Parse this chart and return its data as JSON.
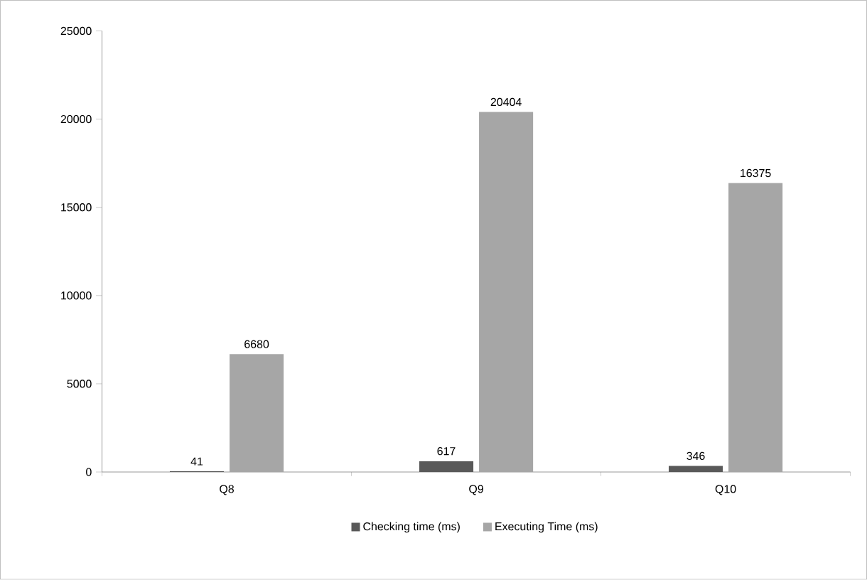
{
  "chart_data": {
    "type": "bar",
    "categories": [
      "Q8",
      "Q9",
      "Q10"
    ],
    "series": [
      {
        "name": "Checking time (ms)",
        "color": "#595959",
        "values": [
          41,
          617,
          346
        ]
      },
      {
        "name": "Executing Time (ms)",
        "color": "#a6a6a6",
        "values": [
          6680,
          20404,
          16375
        ]
      }
    ],
    "ylim": [
      0,
      25000
    ],
    "yticks": [
      0,
      5000,
      10000,
      15000,
      20000,
      25000
    ],
    "data_labels": true,
    "legend": "bottom",
    "grid": false
  }
}
